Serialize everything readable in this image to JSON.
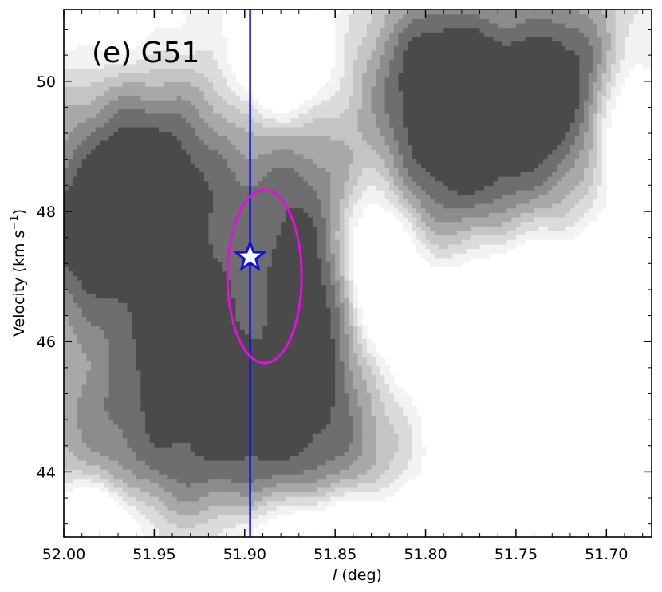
{
  "chart_data": {
    "type": "contour",
    "title": "(e) G51",
    "xlabel": {
      "italic": "l",
      "rest": " (deg)"
    },
    "ylabel": {
      "base": "Velocity (km s",
      "sup": "−1",
      "close": ")"
    },
    "xlim": [
      52.0,
      51.675
    ],
    "ylim": [
      43.0,
      51.1
    ],
    "xticks": [
      "52.00",
      "51.95",
      "51.90",
      "51.85",
      "51.80",
      "51.75",
      "51.70"
    ],
    "xtick_values": [
      52.0,
      51.95,
      51.9,
      51.85,
      51.8,
      51.75,
      51.7
    ],
    "yticks": [
      "44",
      "46",
      "48",
      "50"
    ],
    "ytick_values": [
      44,
      46,
      48,
      50
    ],
    "contour_levels": 7,
    "colors": {
      "levels": [
        "#f2f2f2",
        "#dbdbdb",
        "#c4c4c4",
        "#a8a8a8",
        "#8c8c8c",
        "#6e6e6e",
        "#4a4a4a"
      ],
      "vertical_line": "#1010e0",
      "ellipse": "#e010e0",
      "star_edge": "#1010e0",
      "star_fill": "#ffffff"
    },
    "vertical_line_l": 51.897,
    "marker": {
      "shape": "star",
      "l": 51.897,
      "v": 47.3
    },
    "ellipse": {
      "center_l": 51.889,
      "center_v": 47.0,
      "semi_l": 0.0205,
      "semi_v": 1.33
    },
    "blobs": [
      {
        "l": 51.975,
        "v": 47.6,
        "sl": 0.04,
        "sv": 0.9,
        "a": 0.75
      },
      {
        "l": 51.955,
        "v": 48.6,
        "sl": 0.025,
        "sv": 0.8,
        "a": 0.45
      },
      {
        "l": 51.955,
        "v": 49.6,
        "sl": 0.05,
        "sv": 1.2,
        "a": 0.25
      },
      {
        "l": 51.93,
        "v": 46.3,
        "sl": 0.02,
        "sv": 0.7,
        "a": 0.45
      },
      {
        "l": 51.96,
        "v": 45.3,
        "sl": 0.04,
        "sv": 1.0,
        "a": 0.35
      },
      {
        "l": 51.875,
        "v": 48.0,
        "sl": 0.03,
        "sv": 1.0,
        "a": 0.35
      },
      {
        "l": 51.855,
        "v": 46.4,
        "sl": 0.02,
        "sv": 0.9,
        "a": 0.55
      },
      {
        "l": 51.87,
        "v": 45.6,
        "sl": 0.04,
        "sv": 1.0,
        "a": 0.2
      },
      {
        "l": 51.9,
        "v": 44.7,
        "sl": 0.06,
        "sv": 0.9,
        "a": 0.3
      },
      {
        "l": 51.93,
        "v": 43.8,
        "sl": 0.07,
        "sv": 0.7,
        "a": 0.2
      },
      {
        "l": 51.795,
        "v": 50.2,
        "sl": 0.025,
        "sv": 0.9,
        "a": 0.55
      },
      {
        "l": 51.77,
        "v": 49.6,
        "sl": 0.03,
        "sv": 1.0,
        "a": 0.45
      },
      {
        "l": 51.72,
        "v": 50.2,
        "sl": 0.025,
        "sv": 0.9,
        "a": 0.55
      },
      {
        "l": 51.74,
        "v": 48.6,
        "sl": 0.06,
        "sv": 1.2,
        "a": 0.35
      },
      {
        "l": 51.8,
        "v": 48.2,
        "sl": 0.05,
        "sv": 0.9,
        "a": 0.3
      },
      {
        "l": 51.83,
        "v": 46.8,
        "sl": 0.05,
        "sv": 1.2,
        "a": 0.22
      },
      {
        "l": 51.85,
        "v": 44.2,
        "sl": 0.05,
        "sv": 0.9,
        "a": 0.22
      },
      {
        "l": 51.71,
        "v": 45.4,
        "sl": 0.012,
        "sv": 0.5,
        "a": 0.35
      }
    ],
    "holes": [
      {
        "l": 51.83,
        "v": 47.2,
        "sl": 0.018,
        "sv": 1.1,
        "a": 0.9
      },
      {
        "l": 51.88,
        "v": 50.5,
        "sl": 0.018,
        "sv": 0.7,
        "a": 0.7
      },
      {
        "l": 51.985,
        "v": 43.2,
        "sl": 0.02,
        "sv": 0.5,
        "a": 0.6
      },
      {
        "l": 51.69,
        "v": 49.3,
        "sl": 0.015,
        "sv": 0.9,
        "a": 0.6
      },
      {
        "l": 51.7,
        "v": 44.0,
        "sl": 0.06,
        "sv": 1.4,
        "a": 0.9
      },
      {
        "l": 51.75,
        "v": 46.5,
        "sl": 0.05,
        "sv": 1.3,
        "a": 0.6
      },
      {
        "l": 51.97,
        "v": 50.8,
        "sl": 0.03,
        "sv": 0.6,
        "a": 0.3
      },
      {
        "l": 51.855,
        "v": 43.1,
        "sl": 0.04,
        "sv": 0.5,
        "a": 0.5
      }
    ]
  }
}
